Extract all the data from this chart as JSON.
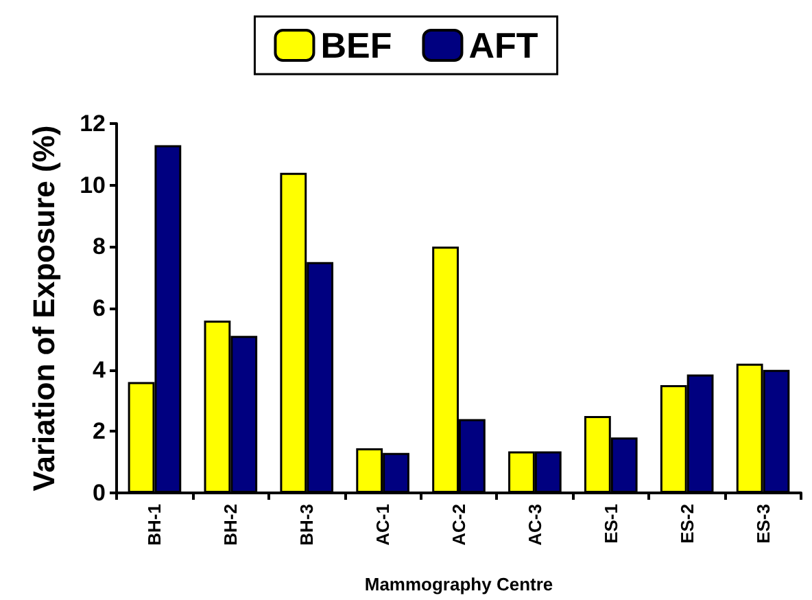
{
  "chart_data": {
    "type": "bar",
    "xlabel": "Mammography Centre",
    "ylabel": "Variation of Exposure (%)",
    "categories": [
      "BH-1",
      "BH-2",
      "BH-3",
      "AC-1",
      "AC-2",
      "AC-3",
      "ES-1",
      "ES-2",
      "ES-3"
    ],
    "series": [
      {
        "name": "BEF",
        "color": "#ffff00",
        "values": [
          3.6,
          5.6,
          10.4,
          1.45,
          8.0,
          1.35,
          2.5,
          3.5,
          4.2
        ]
      },
      {
        "name": "AFT",
        "color": "#000080",
        "values": [
          11.3,
          5.1,
          7.5,
          1.3,
          2.4,
          1.35,
          1.8,
          3.85,
          4.0
        ]
      }
    ],
    "ylim": [
      0,
      12
    ],
    "yticks": [
      0,
      2,
      4,
      6,
      8,
      10,
      12
    ],
    "grid": false,
    "legend": "top"
  }
}
